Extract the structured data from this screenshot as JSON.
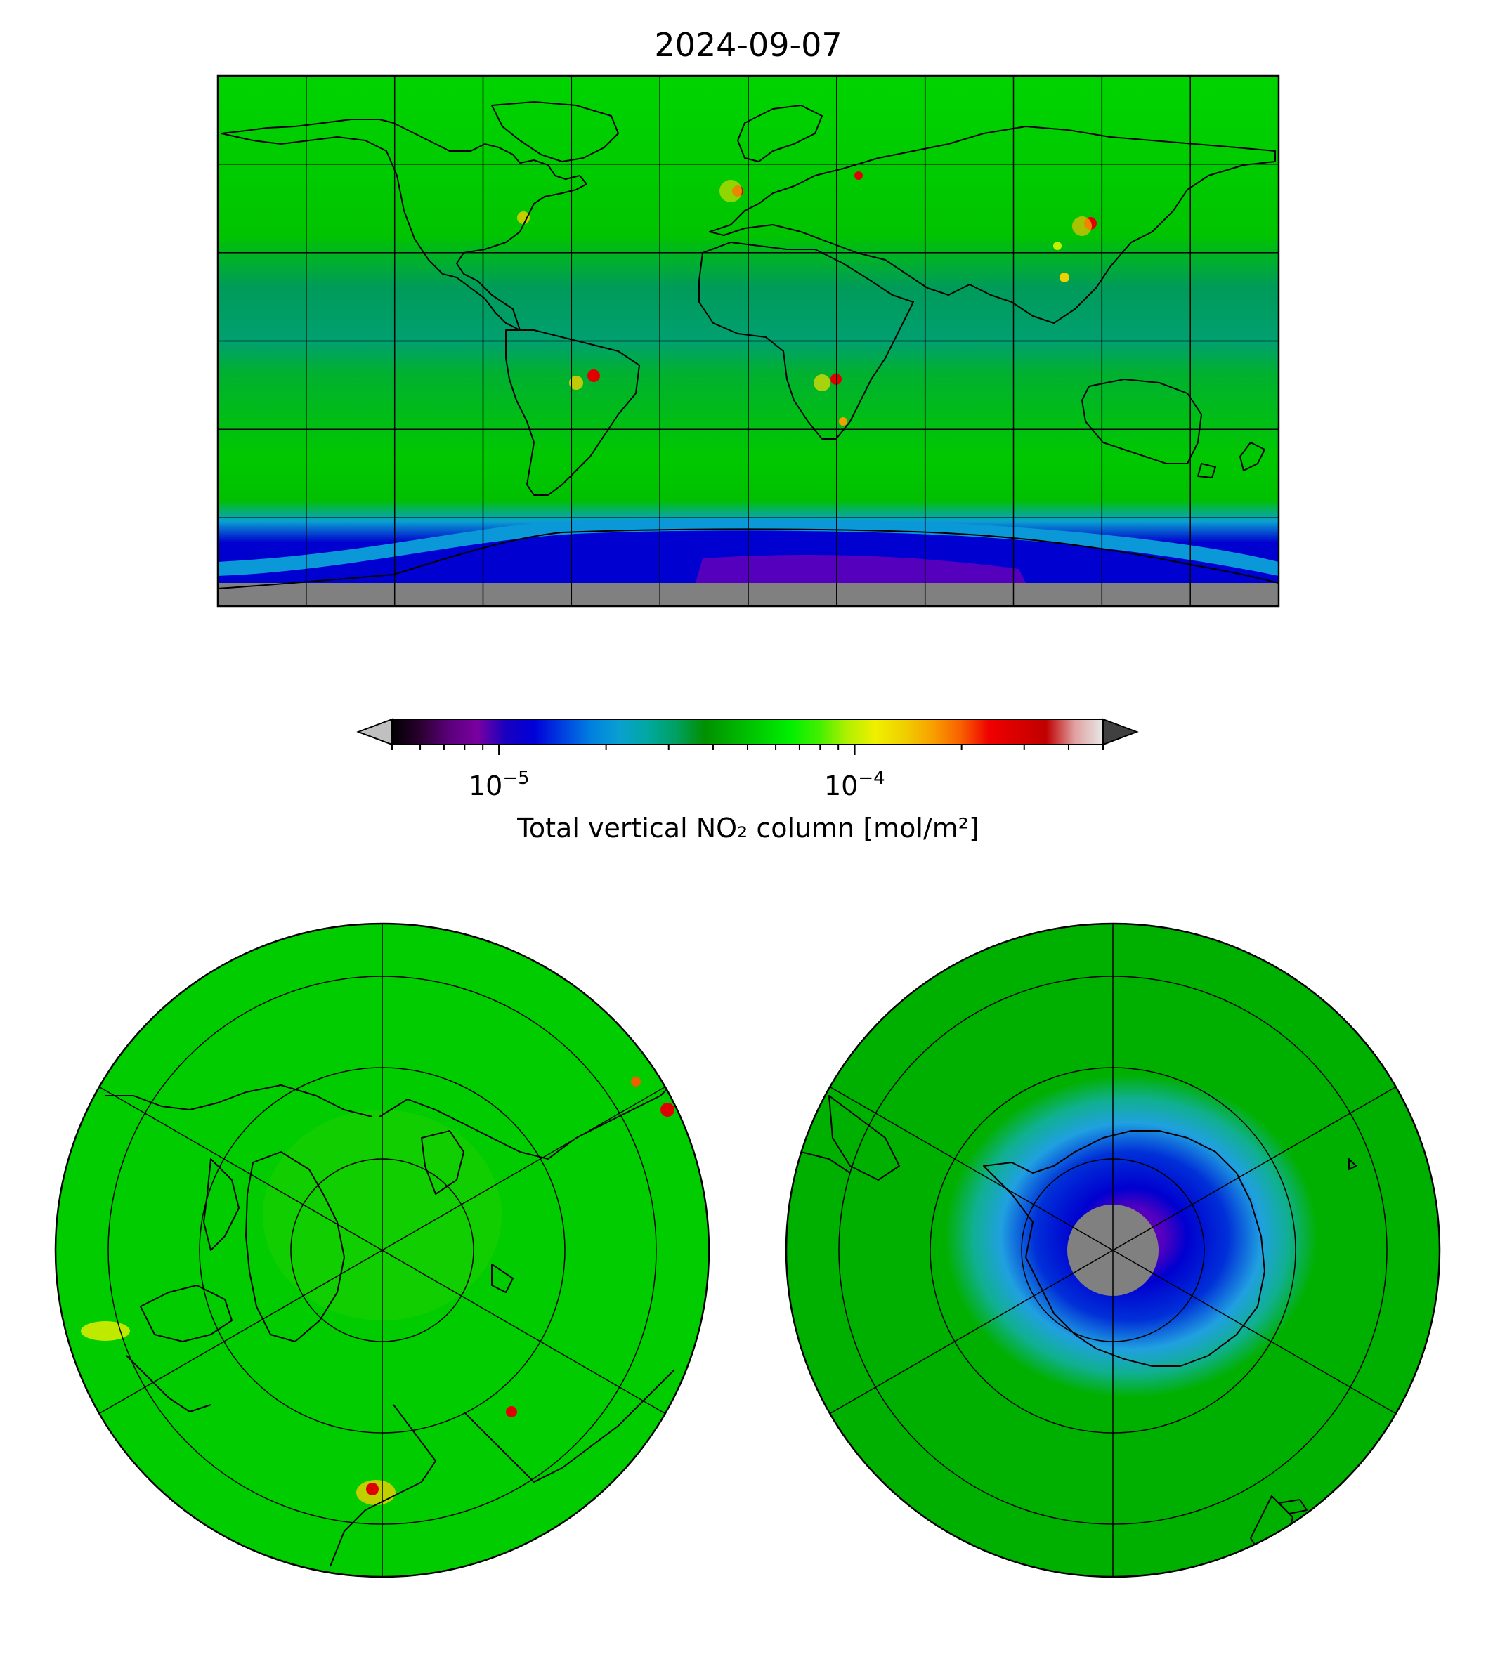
{
  "figure": {
    "title": "2024-09-07"
  },
  "colorbar": {
    "label": "Total vertical NO₂ column [mol/m²]",
    "scale": "log",
    "range": [
      5e-06,
      0.0005
    ],
    "ticks": [
      {
        "base": "10",
        "exp": "−5",
        "value": 1e-05
      },
      {
        "base": "10",
        "exp": "−4",
        "value": 0.0001
      }
    ],
    "extend": "both",
    "colors": [
      "#000000",
      "#2b0030",
      "#5a007a",
      "#7a00a0",
      "#1800c0",
      "#0000d8",
      "#0040e0",
      "#0080e0",
      "#0aa0d0",
      "#00a8a0",
      "#00a060",
      "#009000",
      "#00b000",
      "#00d000",
      "#00f000",
      "#40f000",
      "#b0f000",
      "#f0f000",
      "#f0d000",
      "#f8a000",
      "#f86000",
      "#f00000",
      "#d80000",
      "#c00000",
      "#e0a0a0",
      "#e8e8e8"
    ],
    "under_color": "#c0c0c0",
    "over_color": "#404040"
  },
  "maps": {
    "global": {
      "projection": "plate-carree",
      "background": "#00cc00",
      "missing_color": "#808080"
    },
    "north_polar": {
      "projection": "north-polar-stereographic",
      "background": "#00cc00"
    },
    "south_polar": {
      "projection": "south-polar-stereographic",
      "background": "#00b000",
      "missing_color": "#808080"
    }
  }
}
